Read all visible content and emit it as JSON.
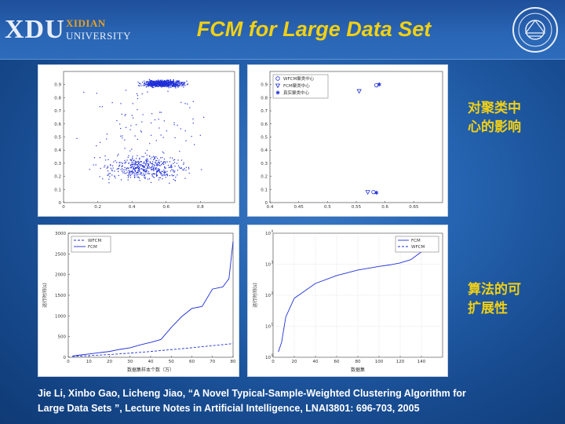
{
  "header": {
    "logo_main": "XDU",
    "logo_line1": "XIDIAN",
    "logo_line2": "UNIVERSITY",
    "title": "FCM  for Large Data Set"
  },
  "side_labels": {
    "top": [
      "对聚类中",
      "心的影响"
    ],
    "bottom": [
      "算法的可",
      "扩展性"
    ]
  },
  "citation": {
    "line1": "Jie Li, Xinbo Gao, Licheng Jiao, “A Novel Typical-Sample-Weighted Clustering Algorithm for",
    "line2": "Large Data Sets ”, Lecture Notes in Artificial Intelligence, LNAI3801: 696-703, 2005"
  },
  "colors": {
    "title": "#f2d014",
    "series_blue": "#1f2fd8",
    "bg": "#2563b0"
  },
  "chart_data": [
    {
      "type": "scatter",
      "xlim": [
        0,
        1
      ],
      "ylim": [
        0,
        1
      ],
      "xticks": [
        "0",
        "0.2",
        "0.4",
        "0.6",
        "0.8"
      ],
      "yticks": [
        "0",
        "0.1",
        "0.2",
        "0.3",
        "0.4",
        "0.5",
        "0.6",
        "0.7",
        "0.8",
        "0.9"
      ],
      "clusters": [
        {
          "cx": 0.58,
          "cy": 0.91,
          "sx": 0.08,
          "sy": 0.018,
          "n": 700
        },
        {
          "cx": 0.47,
          "cy": 0.27,
          "sx": 0.17,
          "sy": 0.065,
          "n": 480
        },
        {
          "cx": 0.5,
          "cy": 0.62,
          "sx": 0.28,
          "sy": 0.2,
          "n": 80
        }
      ]
    },
    {
      "type": "scatter",
      "xlim": [
        0.4,
        0.7
      ],
      "ylim": [
        0,
        1
      ],
      "xticks": [
        "0.4",
        "0.45",
        "0.5",
        "0.55",
        "0.6",
        "0.65"
      ],
      "yticks": [
        "0",
        "0.1",
        "0.2",
        "0.3",
        "0.4",
        "0.5",
        "0.6",
        "0.7",
        "0.8",
        "0.9"
      ],
      "legend": [
        "WFCM聚类中心",
        "FCM聚类中心",
        "真实聚类中心"
      ],
      "series": [
        {
          "name": "WFCM聚类中心",
          "marker": "circle",
          "points": [
            [
              0.585,
              0.895
            ],
            [
              0.58,
              0.08
            ]
          ]
        },
        {
          "name": "FCM聚类中心",
          "marker": "triangle",
          "points": [
            [
              0.555,
              0.85
            ],
            [
              0.57,
              0.08
            ]
          ]
        },
        {
          "name": "真实聚类中心",
          "marker": "star",
          "points": [
            [
              0.59,
              0.9
            ],
            [
              0.585,
              0.075
            ]
          ]
        }
      ]
    },
    {
      "type": "line",
      "ylabel": "运行时间(s)",
      "xlabel": "数据集样本个数（万）",
      "xlim": [
        0,
        80
      ],
      "ylim": [
        0,
        3000
      ],
      "xticks": [
        "0",
        "10",
        "20",
        "30",
        "40",
        "50",
        "60",
        "70",
        "80"
      ],
      "yticks": [
        "0",
        "500",
        "1000",
        "1500",
        "2000",
        "2500",
        "3000"
      ],
      "legend": [
        "WFCM",
        "FCM"
      ],
      "series": [
        {
          "name": "WFCM",
          "x": [
            2,
            10,
            20,
            30,
            40,
            50,
            60,
            70,
            80
          ],
          "y": [
            20,
            40,
            65,
            100,
            140,
            185,
            230,
            280,
            330
          ]
        },
        {
          "name": "FCM",
          "x": [
            2,
            5,
            10,
            15,
            20,
            25,
            30,
            35,
            40,
            45,
            50,
            55,
            60,
            65,
            70,
            75,
            78,
            80
          ],
          "y": [
            30,
            50,
            80,
            110,
            140,
            190,
            230,
            300,
            360,
            430,
            720,
            980,
            1180,
            1230,
            1650,
            1700,
            1900,
            2800
          ]
        }
      ]
    },
    {
      "type": "line",
      "ylabel": "运行时间(s)",
      "xlabel": "数据集",
      "yscale": "log",
      "xlim": [
        0,
        150
      ],
      "xticks": [
        "0",
        "20",
        "40",
        "60",
        "80",
        "100",
        "120",
        "140"
      ],
      "legend": [
        "FCM",
        "WFCM"
      ],
      "series": [
        {
          "name": "FCM",
          "x": [
            5,
            8,
            12,
            20,
            40,
            60,
            80,
            100,
            110,
            120,
            130,
            140,
            150
          ],
          "y": [
            1.5,
            3,
            20,
            80,
            240,
            430,
            650,
            850,
            950,
            1100,
            1400,
            2500,
            5000
          ]
        }
      ]
    }
  ]
}
